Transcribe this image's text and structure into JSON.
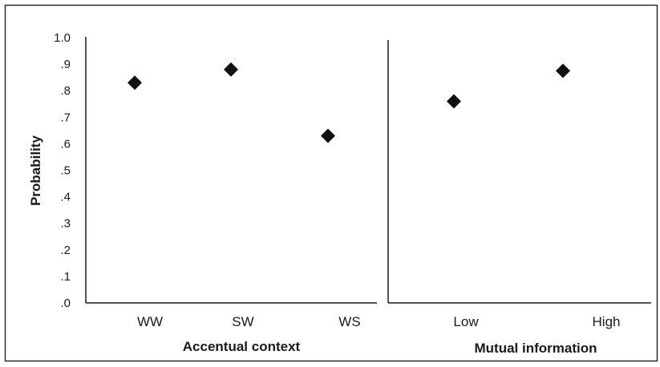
{
  "chart_data": {
    "type": "scatter",
    "ylabel": "Probability",
    "ylim": [
      0,
      1
    ],
    "yticks": [
      ".0",
      ".1",
      ".2",
      ".3",
      ".4",
      ".5",
      ".6",
      ".7",
      ".8",
      ".9",
      "1.0"
    ],
    "grid": false,
    "legend": "none",
    "marker": "diamond",
    "marker_color": "#111111",
    "panels": [
      {
        "xlabel": "Accentual context",
        "categories": [
          "WW",
          "SW",
          "WS"
        ],
        "values": [
          0.83,
          0.88,
          0.63
        ]
      },
      {
        "xlabel": "Mutual information",
        "categories": [
          "Low",
          "High"
        ],
        "values": [
          0.76,
          0.875
        ]
      }
    ]
  }
}
